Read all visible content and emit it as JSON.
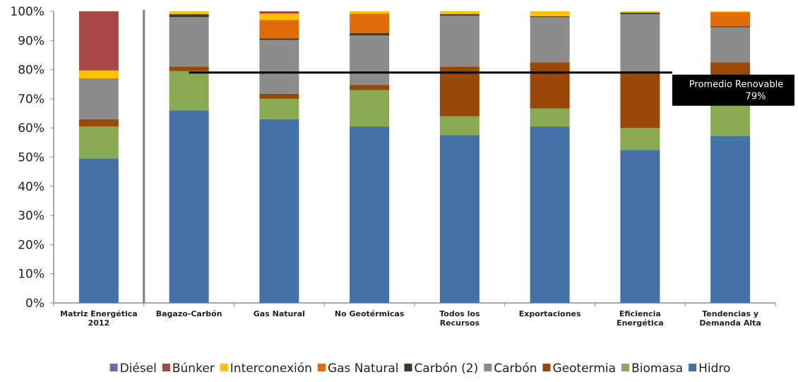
{
  "chart_data": {
    "type": "bar",
    "stacked": true,
    "ylim": [
      0,
      100
    ],
    "y_ticks": [
      "0%",
      "10%",
      "20%",
      "30%",
      "40%",
      "50%",
      "60%",
      "70%",
      "80%",
      "90%",
      "100%"
    ],
    "categories": [
      [
        "Matriz Energética",
        "2012"
      ],
      [
        "Bagazo-Carbón"
      ],
      [
        "Gas Natural"
      ],
      [
        "No Geotérmicas"
      ],
      [
        "Todos los",
        "Recursos"
      ],
      [
        "Exportaciones"
      ],
      [
        "Eficiencia",
        "Energética"
      ],
      [
        "Tendencias y",
        "Demanda Alta"
      ]
    ],
    "series": [
      {
        "name": "Hidro",
        "color": "#4472a8",
        "values": [
          49.5,
          66,
          63,
          60.5,
          57.5,
          60.5,
          52.5,
          57.3
        ]
      },
      {
        "name": "Biomasa",
        "color": "#8aaa52",
        "values": [
          11,
          13.5,
          7,
          12.5,
          6.5,
          6.2,
          7.5,
          11.2
        ]
      },
      {
        "name": "Geotermia",
        "color": "#984807",
        "values": [
          2.5,
          1.5,
          1.7,
          1.7,
          17,
          15.8,
          19.5,
          14
        ]
      },
      {
        "name": "Carbón",
        "color": "#8c8c8c",
        "values": [
          14,
          17,
          18.5,
          17,
          17.5,
          15.5,
          19.5,
          12
        ]
      },
      {
        "name": "Carbón (2)",
        "color": "#3b3b23",
        "values": [
          0,
          1,
          0.5,
          0.8,
          0.5,
          0.3,
          0.5,
          0.3
        ]
      },
      {
        "name": "Gas Natural",
        "color": "#e26b0a",
        "values": [
          0,
          0,
          6.3,
          6.7,
          0,
          0,
          0,
          4.9
        ]
      },
      {
        "name": "Interconexión",
        "color": "#ffc000",
        "values": [
          2.7,
          1,
          2.2,
          0.8,
          1,
          1.7,
          0.5,
          0.3
        ]
      },
      {
        "name": "Búnker",
        "color": "#a94747",
        "values": [
          20.3,
          0,
          0.8,
          0,
          0,
          0,
          0,
          0
        ]
      },
      {
        "name": "Diésel",
        "color": "#8064a2",
        "values": [
          0,
          0,
          0,
          0,
          0,
          0,
          0,
          0
        ]
      }
    ],
    "legend_order": [
      "Diésel",
      "Búnker",
      "Interconexión",
      "Gas Natural",
      "Carbón (2)",
      "Carbón",
      "Geotermia",
      "Biomasa",
      "Hidro"
    ],
    "legend_position": "bottom",
    "reference_line": {
      "value": 79,
      "label_line1": "Promedio Renovable",
      "label_line2": "79%",
      "color": "#000000"
    },
    "separator_after_category": 0,
    "grid": false
  }
}
